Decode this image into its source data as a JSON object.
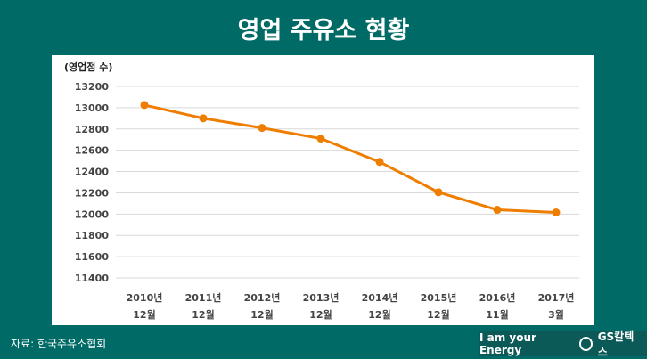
{
  "title": "영업 주유소 현황",
  "source": "자료: 한국주유소협회",
  "brand": {
    "slogan": "I am your Energy",
    "logo_text": "GS칼텍스"
  },
  "chart_data": {
    "type": "line",
    "title": "",
    "ylabel": "(영업점 수)",
    "xlabel": "",
    "categories": [
      [
        "2010년",
        "12월"
      ],
      [
        "2011년",
        "12월"
      ],
      [
        "2012년",
        "12월"
      ],
      [
        "2013년",
        "12월"
      ],
      [
        "2014년",
        "12월"
      ],
      [
        "2015년",
        "12월"
      ],
      [
        "2016년",
        "11월"
      ],
      [
        "2017년",
        "3월"
      ]
    ],
    "values": [
      13025,
      12900,
      12810,
      12710,
      12490,
      12205,
      12040,
      12015
    ],
    "ylim": [
      11400,
      13200
    ],
    "yticks": [
      11400,
      11600,
      11800,
      12000,
      12200,
      12400,
      12600,
      12800,
      13000,
      13200
    ],
    "grid": true,
    "legend": "none",
    "colors": {
      "line": "#ef7d00",
      "grid": "#d9d9d9"
    }
  }
}
